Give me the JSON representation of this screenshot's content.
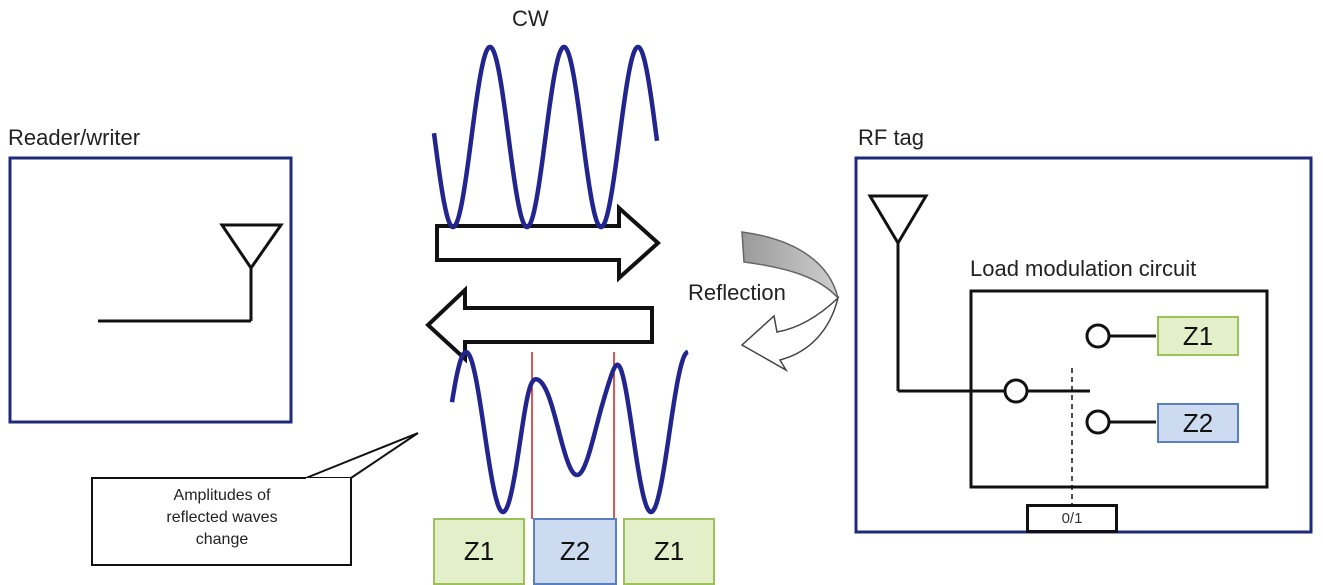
{
  "labels": {
    "cw": "CW",
    "reader_writer": "Reader/writer",
    "rf_tag": "RF tag",
    "reflection": "Reflection",
    "load_modulation": "Load modulation circuit",
    "callout": "Amplitudes of\nreflected waves\nchange",
    "switch_state": "0/1"
  },
  "impedances": {
    "circuit_z1": "Z1",
    "circuit_z2": "Z2",
    "wave_segments": [
      "Z1",
      "Z2",
      "Z1"
    ]
  },
  "colors": {
    "frame": "#1f2a78",
    "wave": "#22258e",
    "z1_fill": "#e2efc8",
    "z1_border": "#9cc15a",
    "z2_fill": "#cddbf0",
    "z2_border": "#5a7fc0",
    "marker": "#d02020",
    "reflection_arrow": "#a0a0a0"
  }
}
